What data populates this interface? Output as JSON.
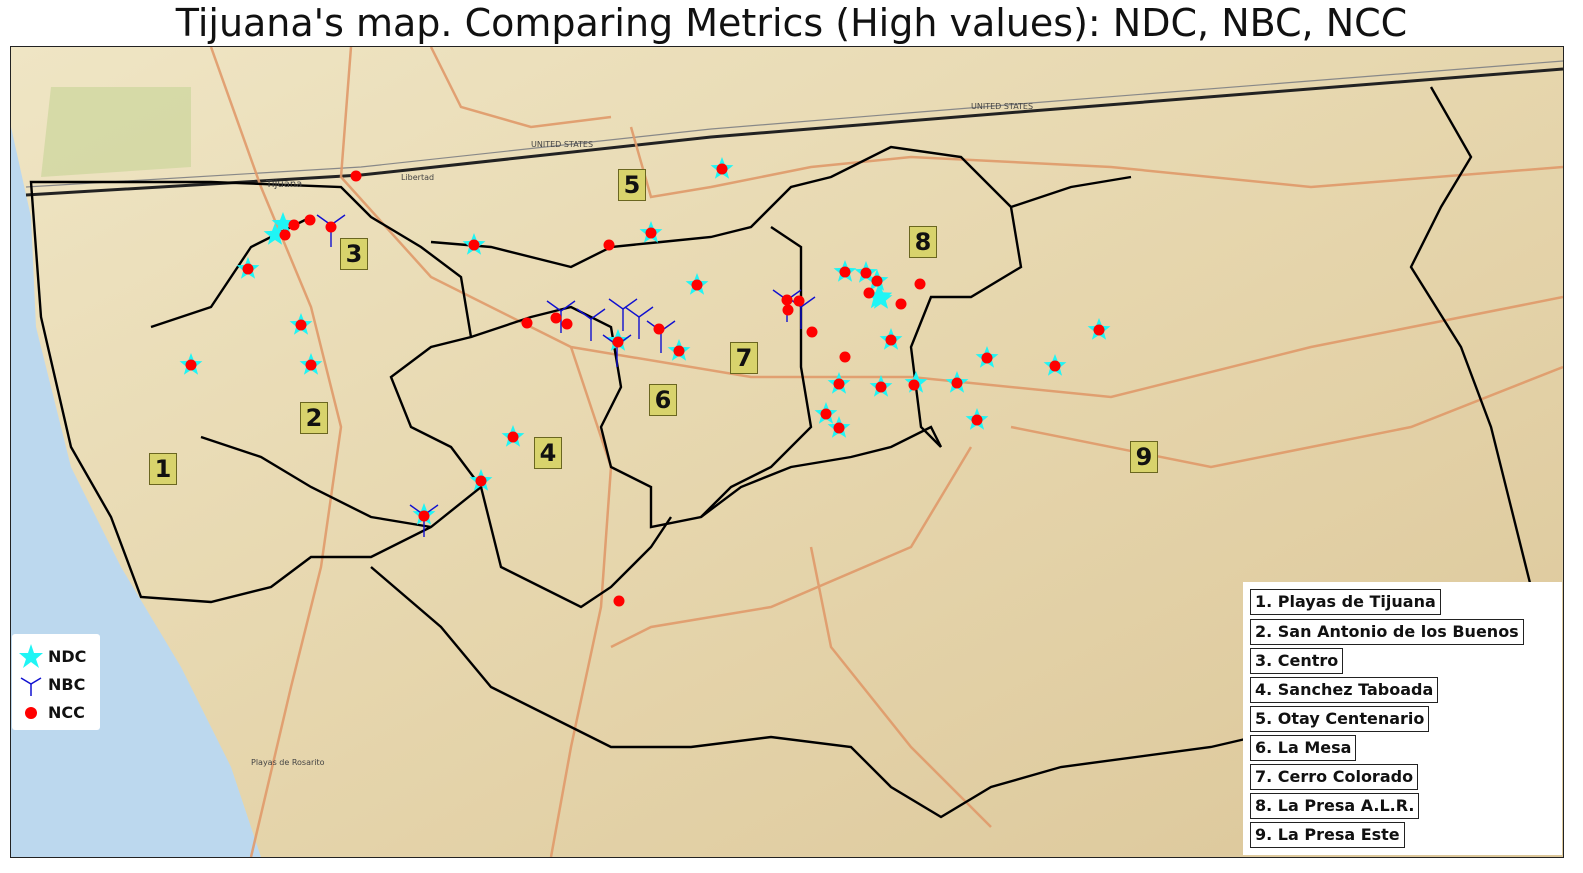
{
  "title": "Tijuana's map. Comparing Metrics (High values): NDC, NBC, NCC",
  "colors": {
    "ndc": "#1ff5f5",
    "nbc": "#1010d0",
    "ncc": "#ff0000",
    "district_label_fill": "#d8d36c",
    "ocean": "#bcd8ee",
    "land": "#ece2c2",
    "roads": "#e09a6a",
    "boundaries": "#000000"
  },
  "map_labels": {
    "city": "Tijuana",
    "country_mx": "UNITED STATES",
    "libertad": "Libertad",
    "playas": "Playas de Rosarito"
  },
  "district_numbers": [
    "1",
    "2",
    "3",
    "4",
    "5",
    "6",
    "7",
    "8",
    "9"
  ],
  "legend": {
    "items": [
      {
        "label": "NDC",
        "icon": "star-icon"
      },
      {
        "label": "NBC",
        "icon": "tri-branch-icon"
      },
      {
        "label": "NCC",
        "icon": "dot-icon"
      }
    ]
  },
  "districts": [
    "1. Playas de Tijuana",
    "2. San Antonio de los Buenos",
    "3. Centro",
    "4. Sanchez Taboada",
    "5. Otay Centenario",
    "6. La Mesa",
    "7. Cerro Colorado",
    "8. La Presa A.L.R.",
    "9. La Presa Este"
  ]
}
